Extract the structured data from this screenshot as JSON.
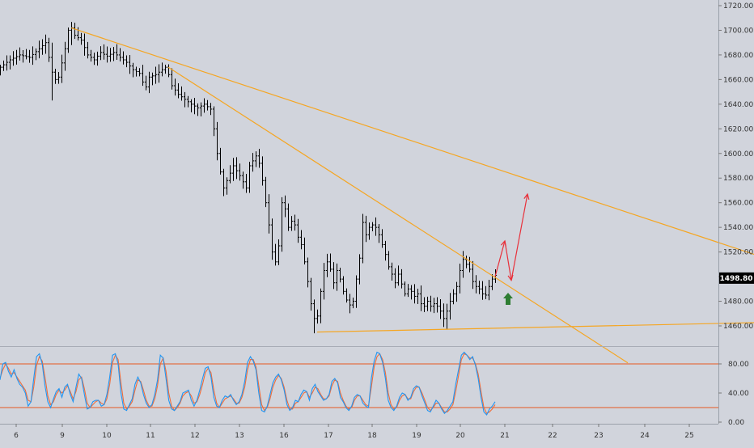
{
  "colors": {
    "background": "#d1d4dc",
    "candles": "#000000",
    "trendline": "#f5a623",
    "projection": "#e8313b",
    "up_arrow": "#2e7d32",
    "stoch_k": "#2196f3",
    "stoch_d": "#ef6c3a",
    "stoch_levels": "#e8591f",
    "price_tag_bg": "#000000",
    "price_tag_text": "#ffffff"
  },
  "chart_data": [
    {
      "type": "ohlc",
      "y_axis": {
        "range": [
          1450,
          1725
        ],
        "ticks": [
          "1460.00",
          "1480.00",
          "1500.00",
          "1520.00",
          "1540.00",
          "1560.00",
          "1580.00",
          "1600.00",
          "1620.00",
          "1640.00",
          "1660.00",
          "1680.00",
          "1700.00",
          "1720.00"
        ]
      },
      "x_axis": {
        "ticks": [
          "6",
          "9",
          "10",
          "11",
          "12",
          "13",
          "16",
          "17",
          "18",
          "19",
          "20",
          "21",
          "22",
          "23",
          "24",
          "25"
        ]
      },
      "current_price": "1498.80",
      "close_path": [
        [
          0,
          1670
        ],
        [
          3,
          1676
        ],
        [
          6,
          1680
        ],
        [
          9,
          1678
        ],
        [
          12,
          1685
        ],
        [
          14,
          1690
        ],
        [
          16,
          1666
        ],
        [
          17,
          1660
        ],
        [
          18,
          1662
        ],
        [
          20,
          1685
        ],
        [
          21,
          1700
        ],
        [
          22,
          1702
        ],
        [
          23,
          1696
        ],
        [
          25,
          1692
        ],
        [
          27,
          1680
        ],
        [
          29,
          1676
        ],
        [
          31,
          1682
        ],
        [
          33,
          1679
        ],
        [
          35,
          1682
        ],
        [
          37,
          1678
        ],
        [
          39,
          1674
        ],
        [
          41,
          1668
        ],
        [
          43,
          1665
        ],
        [
          44,
          1658
        ],
        [
          45,
          1654
        ],
        [
          46,
          1662
        ],
        [
          48,
          1664
        ],
        [
          50,
          1668
        ],
        [
          51,
          1670
        ],
        [
          52,
          1664
        ],
        [
          53,
          1655
        ],
        [
          55,
          1648
        ],
        [
          57,
          1644
        ],
        [
          59,
          1640
        ],
        [
          61,
          1637
        ],
        [
          63,
          1640
        ],
        [
          65,
          1636
        ],
        [
          66,
          1620
        ],
        [
          67,
          1600
        ],
        [
          68,
          1585
        ],
        [
          69,
          1572
        ],
        [
          70,
          1578
        ],
        [
          72,
          1590
        ],
        [
          74,
          1582
        ],
        [
          76,
          1572
        ],
        [
          77,
          1590
        ],
        [
          79,
          1598
        ],
        [
          80,
          1592
        ],
        [
          81,
          1578
        ],
        [
          82,
          1560
        ],
        [
          83,
          1542
        ],
        [
          84,
          1520
        ],
        [
          85,
          1512
        ],
        [
          86,
          1525
        ],
        [
          87,
          1560
        ],
        [
          88,
          1555
        ],
        [
          89,
          1540
        ],
        [
          90,
          1545
        ],
        [
          91,
          1542
        ],
        [
          92,
          1532
        ],
        [
          93,
          1526
        ],
        [
          94,
          1512
        ],
        [
          95,
          1496
        ],
        [
          96,
          1478
        ],
        [
          97,
          1466
        ],
        [
          98,
          1468
        ],
        [
          99,
          1488
        ],
        [
          100,
          1505
        ],
        [
          101,
          1512
        ],
        [
          102,
          1506
        ],
        [
          103,
          1495
        ],
        [
          104,
          1505
        ],
        [
          105,
          1498
        ],
        [
          106,
          1488
        ],
        [
          107,
          1481
        ],
        [
          108,
          1477
        ],
        [
          109,
          1480
        ],
        [
          110,
          1498
        ],
        [
          111,
          1515
        ],
        [
          112,
          1544
        ],
        [
          113,
          1534
        ],
        [
          114,
          1540
        ],
        [
          115,
          1542
        ],
        [
          116,
          1540
        ],
        [
          117,
          1534
        ],
        [
          118,
          1526
        ],
        [
          119,
          1518
        ],
        [
          120,
          1508
        ],
        [
          121,
          1502
        ],
        [
          122,
          1495
        ],
        [
          123,
          1502
        ],
        [
          124,
          1494
        ],
        [
          125,
          1486
        ],
        [
          126,
          1490
        ],
        [
          127,
          1488
        ],
        [
          128,
          1484
        ],
        [
          129,
          1486
        ],
        [
          130,
          1478
        ],
        [
          131,
          1476
        ],
        [
          132,
          1480
        ],
        [
          133,
          1476
        ],
        [
          134,
          1478
        ],
        [
          135,
          1476
        ],
        [
          136,
          1472
        ],
        [
          137,
          1466
        ],
        [
          138,
          1472
        ],
        [
          139,
          1480
        ],
        [
          140,
          1486
        ],
        [
          141,
          1492
        ],
        [
          142,
          1505
        ],
        [
          143,
          1514
        ],
        [
          144,
          1510
        ],
        [
          145,
          1506
        ],
        [
          146,
          1496
        ],
        [
          147,
          1492
        ],
        [
          148,
          1490
        ],
        [
          149,
          1486
        ],
        [
          150,
          1485
        ],
        [
          151,
          1492
        ],
        [
          152,
          1498
        ],
        [
          153,
          1501
        ]
      ]
    },
    {
      "type": "line",
      "name": "stochastic",
      "y_axis": {
        "range": [
          -5,
          110
        ],
        "ticks": [
          "0.00",
          "40.00",
          "80.00"
        ]
      },
      "levels": [
        80,
        20
      ],
      "series": [
        {
          "key": "k",
          "values": [
            58,
            80,
            82,
            70,
            62,
            72,
            60,
            52,
            48,
            40,
            22,
            28,
            60,
            90,
            94,
            80,
            50,
            28,
            20,
            32,
            42,
            46,
            34,
            48,
            52,
            38,
            28,
            48,
            66,
            60,
            38,
            18,
            20,
            28,
            30,
            30,
            22,
            24,
            38,
            62,
            92,
            94,
            80,
            40,
            18,
            16,
            24,
            32,
            52,
            62,
            54,
            38,
            26,
            20,
            24,
            38,
            58,
            92,
            88,
            60,
            30,
            18,
            16,
            22,
            28,
            40,
            42,
            44,
            30,
            22,
            30,
            44,
            60,
            74,
            76,
            62,
            34,
            22,
            20,
            30,
            36,
            34,
            38,
            30,
            24,
            28,
            38,
            56,
            82,
            90,
            84,
            72,
            40,
            16,
            14,
            22,
            38,
            54,
            62,
            66,
            58,
            44,
            24,
            16,
            20,
            30,
            28,
            38,
            44,
            42,
            30,
            46,
            52,
            42,
            36,
            30,
            32,
            38,
            56,
            60,
            54,
            34,
            28,
            20,
            16,
            22,
            34,
            38,
            36,
            26,
            22,
            20,
            60,
            84,
            96,
            94,
            82,
            60,
            30,
            20,
            16,
            22,
            34,
            40,
            38,
            30,
            34,
            46,
            50,
            48,
            36,
            26,
            16,
            14,
            22,
            30,
            26,
            18,
            12,
            16,
            22,
            28,
            52,
            72,
            92,
            96,
            92,
            86,
            90,
            78,
            60,
            34,
            14,
            10,
            18,
            22,
            28
          ]
        },
        {
          "key": "d",
          "values": [
            60,
            72,
            80,
            74,
            66,
            68,
            62,
            56,
            50,
            44,
            30,
            28,
            48,
            78,
            90,
            84,
            62,
            36,
            24,
            28,
            38,
            44,
            40,
            44,
            50,
            42,
            32,
            42,
            58,
            62,
            46,
            26,
            20,
            24,
            28,
            30,
            26,
            24,
            32,
            52,
            82,
            92,
            86,
            54,
            26,
            18,
            22,
            28,
            44,
            58,
            56,
            44,
            30,
            22,
            22,
            32,
            50,
            80,
            88,
            70,
            40,
            22,
            16,
            20,
            26,
            36,
            40,
            42,
            36,
            26,
            28,
            38,
            52,
            68,
            74,
            68,
            44,
            26,
            20,
            26,
            32,
            34,
            36,
            32,
            26,
            26,
            34,
            48,
            72,
            86,
            86,
            76,
            50,
            24,
            16,
            20,
            32,
            48,
            58,
            64,
            60,
            48,
            30,
            18,
            18,
            26,
            28,
            34,
            40,
            42,
            34,
            40,
            48,
            46,
            38,
            32,
            32,
            36,
            50,
            58,
            56,
            40,
            30,
            22,
            18,
            20,
            30,
            36,
            36,
            30,
            24,
            22,
            48,
            76,
            90,
            94,
            86,
            68,
            40,
            24,
            18,
            20,
            30,
            36,
            38,
            32,
            32,
            42,
            48,
            48,
            40,
            30,
            20,
            16,
            20,
            26,
            26,
            20,
            14,
            14,
            18,
            24,
            42,
            64,
            86,
            94,
            92,
            88,
            88,
            80,
            66,
            42,
            20,
            12,
            14,
            18,
            24
          ]
        }
      ]
    }
  ],
  "drawings": {
    "upper_trendline": {
      "p1": [
        22,
        1702
      ],
      "p2": [
        240,
        1512
      ]
    },
    "steep_trendline": {
      "p1": [
        52,
        1670
      ],
      "p2": [
        194,
        1430
      ]
    },
    "support_line": {
      "p1": [
        98,
        1455
      ],
      "p2": [
        240,
        1463
      ]
    },
    "projection_path": [
      [
        153,
        1500
      ],
      [
        156,
        1529
      ],
      [
        158,
        1497
      ],
      [
        163,
        1567
      ]
    ],
    "buy_arrow": {
      "at": [
        157,
        1481
      ]
    }
  }
}
